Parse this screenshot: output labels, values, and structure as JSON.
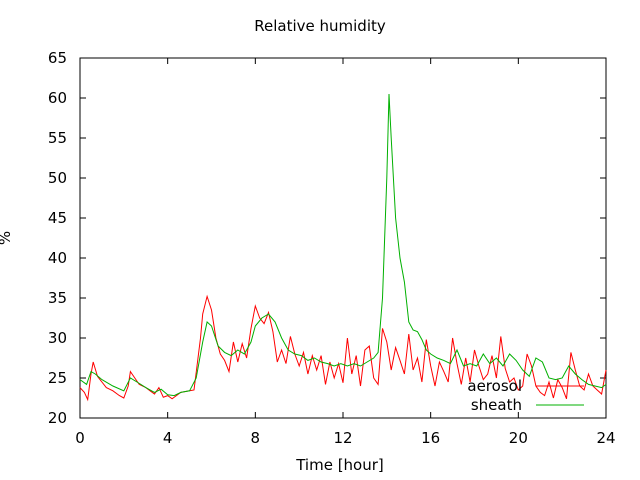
{
  "chart_data": {
    "type": "line",
    "title": "Relative humidity",
    "xlabel": "Time [hour]",
    "ylabel": "%",
    "xlim": [
      0,
      24
    ],
    "ylim": [
      20,
      65
    ],
    "x_ticks": [
      0,
      4,
      8,
      12,
      16,
      20,
      24
    ],
    "y_ticks": [
      20,
      25,
      30,
      35,
      40,
      45,
      50,
      55,
      60,
      65
    ],
    "grid": false,
    "legend_position": "bottom-right",
    "series": [
      {
        "name": "aerosol",
        "color": "#ff0000",
        "x": [
          0,
          0.2,
          0.35,
          0.5,
          0.6,
          0.8,
          1.0,
          1.2,
          1.5,
          1.8,
          2.0,
          2.2,
          2.3,
          2.5,
          2.7,
          3.0,
          3.2,
          3.4,
          3.6,
          3.8,
          4.0,
          4.2,
          4.4,
          4.6,
          5.0,
          5.2,
          5.5,
          5.6,
          5.8,
          6.0,
          6.2,
          6.4,
          6.6,
          6.8,
          7.0,
          7.2,
          7.4,
          7.6,
          7.8,
          8.0,
          8.2,
          8.4,
          8.6,
          8.8,
          9.0,
          9.2,
          9.4,
          9.6,
          9.8,
          10.0,
          10.2,
          10.4,
          10.6,
          10.8,
          11.0,
          11.2,
          11.4,
          11.6,
          11.8,
          12.0,
          12.2,
          12.4,
          12.6,
          12.8,
          13.0,
          13.2,
          13.4,
          13.6,
          13.8,
          14.0,
          14.2,
          14.4,
          14.6,
          14.8,
          15.0,
          15.2,
          15.4,
          15.6,
          15.8,
          16.0,
          16.2,
          16.4,
          16.6,
          16.8,
          17.0,
          17.2,
          17.4,
          17.6,
          17.8,
          18.0,
          18.2,
          18.4,
          18.6,
          18.8,
          19.0,
          19.2,
          19.4,
          19.6,
          19.8,
          20.0,
          20.2,
          20.4,
          20.6,
          20.8,
          21.0,
          21.2,
          21.4,
          21.6,
          21.8,
          22.0,
          22.2,
          22.4,
          22.6,
          22.8,
          23.0,
          23.2,
          23.4,
          23.6,
          23.8,
          24.0
        ],
        "values": [
          23.8,
          23.2,
          22.3,
          25.5,
          27.0,
          25.2,
          24.5,
          23.8,
          23.4,
          22.8,
          22.5,
          24.0,
          25.8,
          25.0,
          24.2,
          23.8,
          23.4,
          23.0,
          23.8,
          22.6,
          22.8,
          22.4,
          22.8,
          23.2,
          23.4,
          23.5,
          30.0,
          33.0,
          35.2,
          33.5,
          30.0,
          28.0,
          27.2,
          25.8,
          29.5,
          27.0,
          29.3,
          27.5,
          31.2,
          34.0,
          32.5,
          31.8,
          33.2,
          30.8,
          27.0,
          28.5,
          26.8,
          30.2,
          28.0,
          26.5,
          28.2,
          25.5,
          27.8,
          26.0,
          27.8,
          24.2,
          27.0,
          25.0,
          26.8,
          24.4,
          30.0,
          25.5,
          27.8,
          24.0,
          28.5,
          29.0,
          25.0,
          24.2,
          31.2,
          29.5,
          26.0,
          28.8,
          27.2,
          25.5,
          30.5,
          26.0,
          27.5,
          24.5,
          29.8,
          26.5,
          24.0,
          27.0,
          25.8,
          24.5,
          30.0,
          26.8,
          24.2,
          27.5,
          24.5,
          28.5,
          26.5,
          24.8,
          25.5,
          27.8,
          25.0,
          30.2,
          26.2,
          24.5,
          25.0,
          23.5,
          24.0,
          28.0,
          26.5,
          24.0,
          23.2,
          22.8,
          24.5,
          22.5,
          24.8,
          23.8,
          22.4,
          28.2,
          26.0,
          24.0,
          23.5,
          25.5,
          24.0,
          23.5,
          23.0,
          26.0
        ]
      },
      {
        "name": "sheath",
        "color": "#00b000",
        "x": [
          0,
          0.3,
          0.5,
          0.7,
          1.0,
          1.5,
          2.0,
          2.3,
          2.6,
          3.0,
          3.4,
          3.7,
          4.0,
          4.3,
          4.6,
          5.0,
          5.3,
          5.6,
          5.8,
          6.0,
          6.3,
          6.6,
          6.9,
          7.2,
          7.5,
          7.8,
          8.0,
          8.3,
          8.6,
          8.9,
          9.2,
          9.5,
          9.8,
          10.1,
          10.4,
          10.7,
          11.0,
          11.3,
          11.6,
          11.9,
          12.2,
          12.5,
          12.8,
          13.1,
          13.4,
          13.6,
          13.8,
          14.0,
          14.1,
          14.2,
          14.4,
          14.6,
          14.8,
          15.0,
          15.2,
          15.4,
          15.6,
          15.8,
          16.0,
          16.3,
          16.6,
          16.9,
          17.2,
          17.5,
          17.8,
          18.1,
          18.4,
          18.7,
          19.0,
          19.3,
          19.6,
          19.9,
          20.2,
          20.5,
          20.8,
          21.1,
          21.4,
          21.7,
          22.0,
          22.3,
          22.6,
          22.9,
          23.2,
          23.5,
          23.8,
          24.0
        ],
        "values": [
          24.8,
          24.2,
          25.8,
          25.5,
          24.8,
          24.0,
          23.4,
          25.0,
          24.5,
          23.8,
          23.2,
          23.6,
          22.9,
          22.8,
          23.2,
          23.4,
          25.0,
          29.5,
          32.0,
          31.5,
          29.0,
          28.2,
          27.8,
          28.5,
          28.0,
          29.5,
          31.5,
          32.5,
          33.0,
          32.0,
          30.0,
          28.5,
          28.0,
          27.8,
          27.2,
          27.5,
          27.0,
          26.8,
          26.5,
          26.8,
          26.5,
          26.8,
          26.5,
          27.0,
          27.5,
          28.2,
          35.0,
          50.0,
          60.5,
          55.0,
          45.0,
          40.0,
          37.0,
          32.0,
          31.0,
          30.8,
          29.8,
          28.5,
          28.0,
          27.5,
          27.2,
          26.8,
          28.5,
          26.5,
          26.8,
          26.5,
          28.0,
          26.8,
          27.5,
          26.5,
          28.0,
          27.2,
          26.0,
          25.2,
          27.5,
          27.0,
          25.0,
          24.8,
          25.0,
          26.5,
          25.5,
          24.8,
          24.2,
          24.0,
          23.8,
          24.2
        ]
      }
    ]
  }
}
